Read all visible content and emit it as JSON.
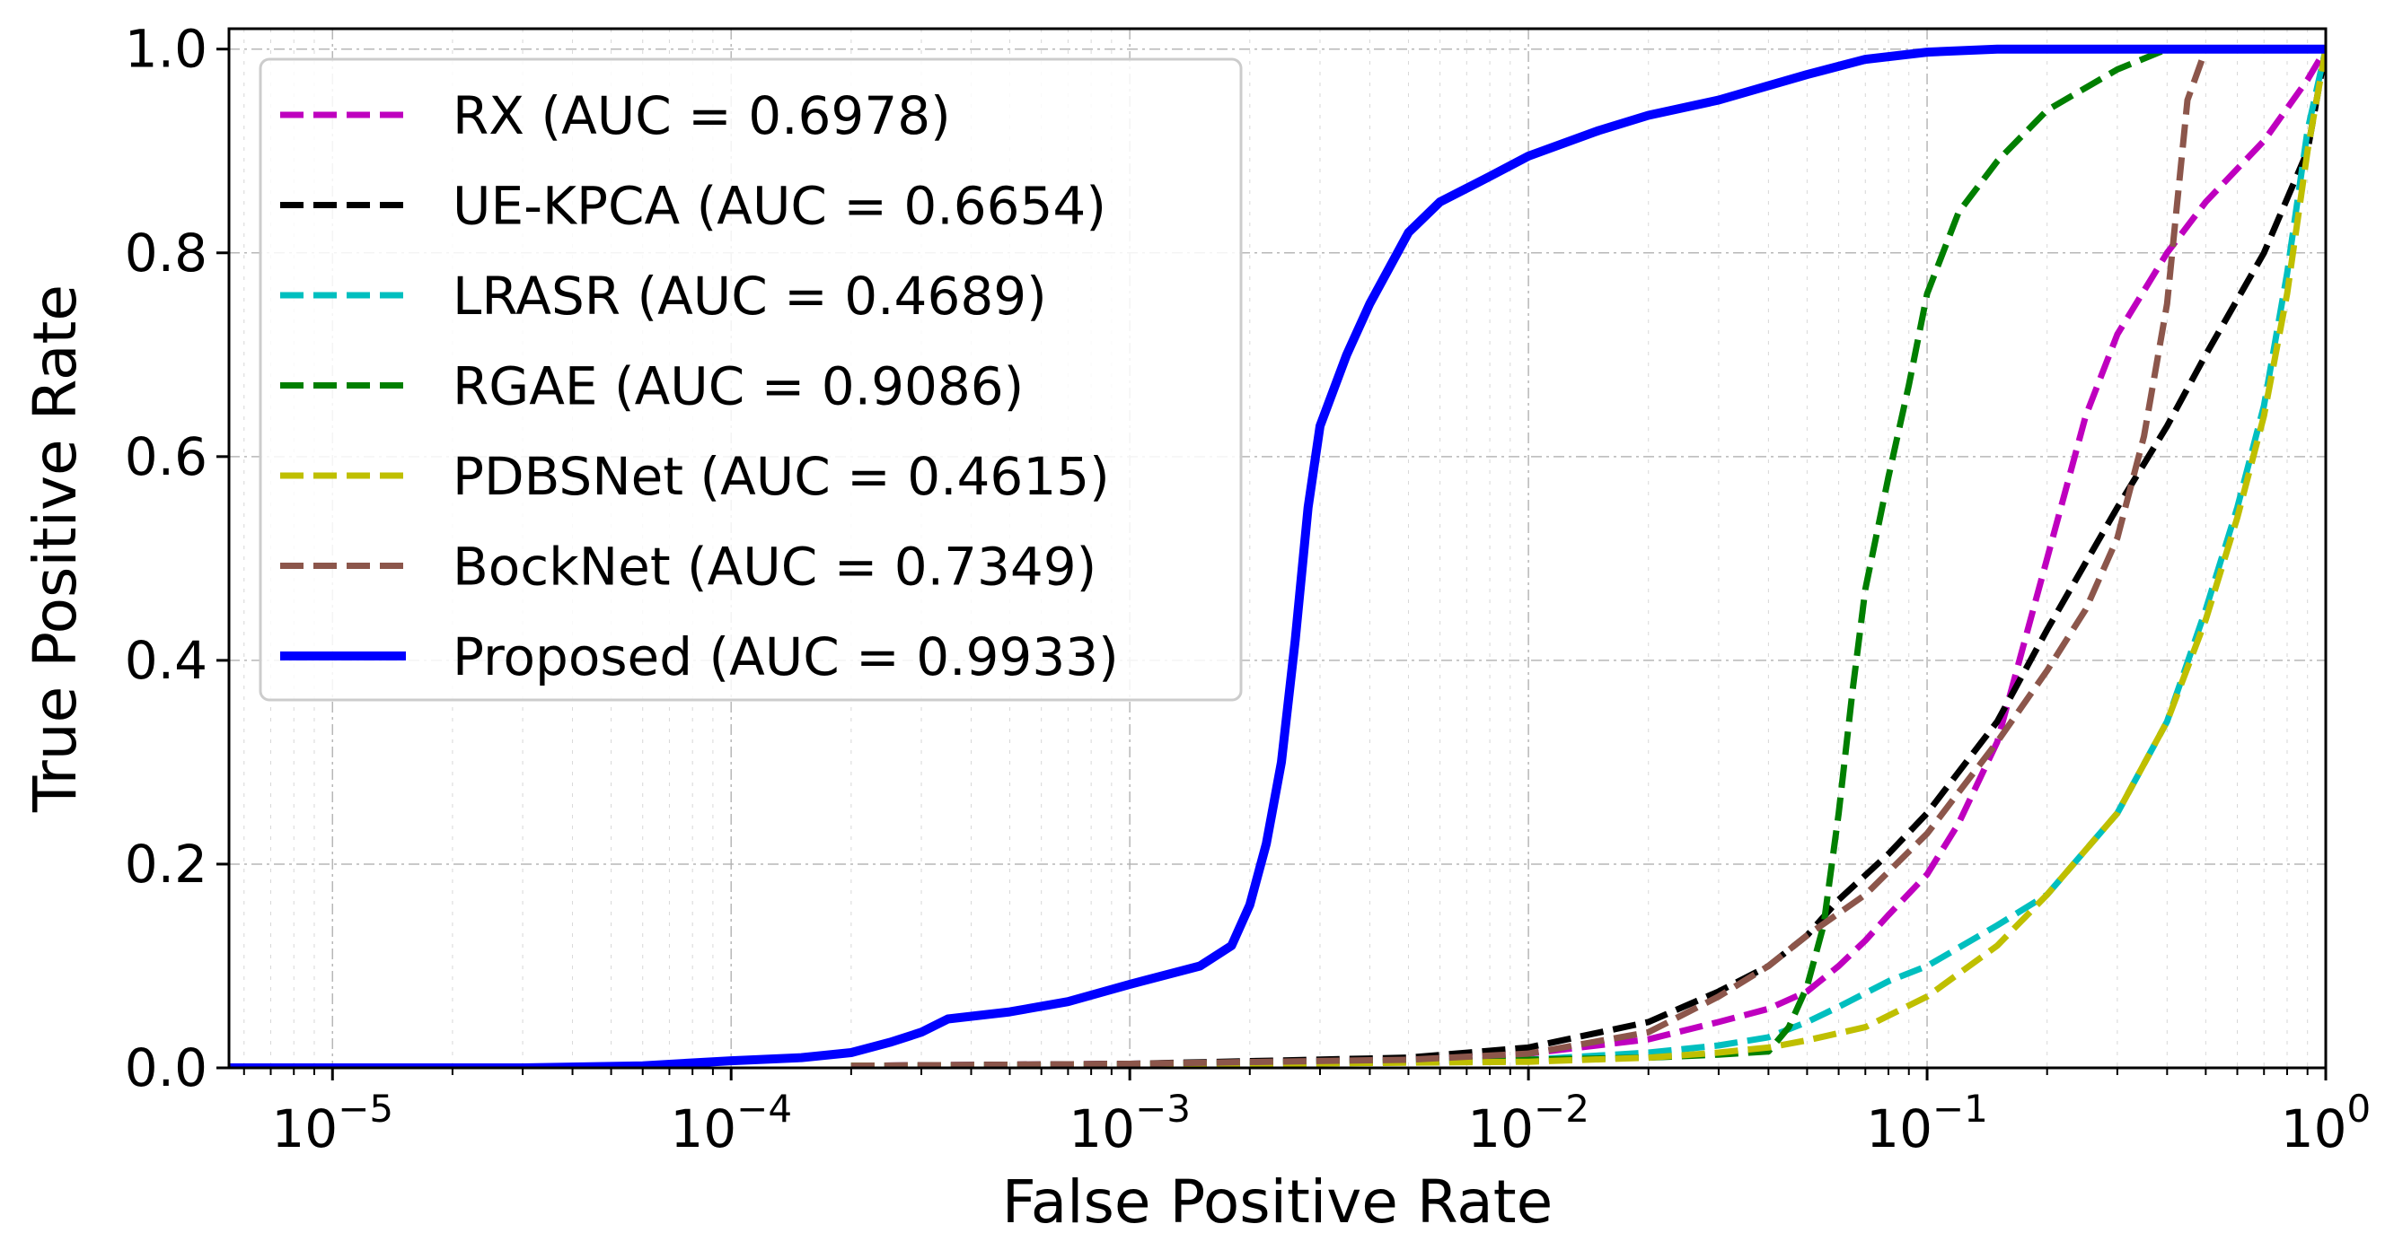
{
  "chart_data": {
    "type": "line",
    "xscale": "log",
    "xlabel": "False Positive Rate",
    "ylabel": "True Positive Rate",
    "xlim": [
      5.5e-06,
      1
    ],
    "ylim": [
      0,
      1.02
    ],
    "grid": true,
    "legend_position": "top-left",
    "x_ticks": [
      {
        "value": 1e-05,
        "base": "10",
        "exp": "−5"
      },
      {
        "value": 0.0001,
        "base": "10",
        "exp": "−4"
      },
      {
        "value": 0.001,
        "base": "10",
        "exp": "−3"
      },
      {
        "value": 0.01,
        "base": "10",
        "exp": "−2"
      },
      {
        "value": 0.1,
        "base": "10",
        "exp": "−1"
      },
      {
        "value": 1,
        "base": "10",
        "exp": "0"
      }
    ],
    "y_ticks": [
      {
        "value": 0.0,
        "label": "0.0"
      },
      {
        "value": 0.2,
        "label": "0.2"
      },
      {
        "value": 0.4,
        "label": "0.4"
      },
      {
        "value": 0.6,
        "label": "0.6"
      },
      {
        "value": 0.8,
        "label": "0.8"
      },
      {
        "value": 1.0,
        "label": "1.0"
      }
    ],
    "series": [
      {
        "name": "RX (AUC = 0.6978)",
        "color": "#bf00bf",
        "style": "dashed",
        "points": [
          [
            0.0002,
            0.002
          ],
          [
            0.001,
            0.004
          ],
          [
            0.005,
            0.008
          ],
          [
            0.01,
            0.014
          ],
          [
            0.02,
            0.028
          ],
          [
            0.03,
            0.045
          ],
          [
            0.04,
            0.058
          ],
          [
            0.05,
            0.075
          ],
          [
            0.06,
            0.1
          ],
          [
            0.07,
            0.125
          ],
          [
            0.08,
            0.15
          ],
          [
            0.1,
            0.19
          ],
          [
            0.12,
            0.24
          ],
          [
            0.15,
            0.32
          ],
          [
            0.2,
            0.5
          ],
          [
            0.25,
            0.64
          ],
          [
            0.3,
            0.72
          ],
          [
            0.4,
            0.8
          ],
          [
            0.5,
            0.85
          ],
          [
            0.7,
            0.91
          ],
          [
            0.9,
            0.97
          ],
          [
            1.0,
            1.0
          ]
        ]
      },
      {
        "name": "UE-KPCA (AUC = 0.6654)",
        "color": "#000000",
        "style": "dashed",
        "points": [
          [
            0.0002,
            0.002
          ],
          [
            0.001,
            0.004
          ],
          [
            0.005,
            0.01
          ],
          [
            0.01,
            0.02
          ],
          [
            0.02,
            0.045
          ],
          [
            0.03,
            0.075
          ],
          [
            0.04,
            0.1
          ],
          [
            0.05,
            0.13
          ],
          [
            0.06,
            0.165
          ],
          [
            0.08,
            0.21
          ],
          [
            0.1,
            0.25
          ],
          [
            0.15,
            0.34
          ],
          [
            0.2,
            0.43
          ],
          [
            0.3,
            0.55
          ],
          [
            0.4,
            0.63
          ],
          [
            0.5,
            0.7
          ],
          [
            0.7,
            0.8
          ],
          [
            0.9,
            0.9
          ],
          [
            1.0,
            1.0
          ]
        ]
      },
      {
        "name": "LRASR (AUC = 0.4689)",
        "color": "#00bfbf",
        "style": "dashed",
        "points": [
          [
            0.0002,
            0.002
          ],
          [
            0.001,
            0.003
          ],
          [
            0.01,
            0.008
          ],
          [
            0.02,
            0.015
          ],
          [
            0.03,
            0.022
          ],
          [
            0.04,
            0.03
          ],
          [
            0.05,
            0.045
          ],
          [
            0.06,
            0.06
          ],
          [
            0.08,
            0.085
          ],
          [
            0.1,
            0.1
          ],
          [
            0.15,
            0.14
          ],
          [
            0.2,
            0.17
          ],
          [
            0.3,
            0.25
          ],
          [
            0.4,
            0.34
          ],
          [
            0.5,
            0.45
          ],
          [
            0.6,
            0.55
          ],
          [
            0.7,
            0.65
          ],
          [
            0.8,
            0.78
          ],
          [
            0.9,
            0.92
          ],
          [
            1.0,
            1.0
          ]
        ]
      },
      {
        "name": "RGAE (AUC = 0.9086)",
        "color": "#007f00",
        "style": "dashed",
        "points": [
          [
            0.0002,
            0.002
          ],
          [
            0.001,
            0.003
          ],
          [
            0.005,
            0.006
          ],
          [
            0.01,
            0.008
          ],
          [
            0.02,
            0.01
          ],
          [
            0.03,
            0.013
          ],
          [
            0.04,
            0.016
          ],
          [
            0.045,
            0.04
          ],
          [
            0.05,
            0.08
          ],
          [
            0.055,
            0.14
          ],
          [
            0.06,
            0.25
          ],
          [
            0.065,
            0.37
          ],
          [
            0.07,
            0.47
          ],
          [
            0.08,
            0.58
          ],
          [
            0.09,
            0.67
          ],
          [
            0.1,
            0.76
          ],
          [
            0.12,
            0.84
          ],
          [
            0.15,
            0.89
          ],
          [
            0.2,
            0.94
          ],
          [
            0.3,
            0.98
          ],
          [
            0.4,
            1.0
          ],
          [
            1.0,
            1.0
          ]
        ]
      },
      {
        "name": "PDBSNet (AUC = 0.4615)",
        "color": "#bfbf00",
        "style": "dashed",
        "points": [
          [
            0.0002,
            0.002
          ],
          [
            0.001,
            0.003
          ],
          [
            0.01,
            0.006
          ],
          [
            0.02,
            0.01
          ],
          [
            0.03,
            0.015
          ],
          [
            0.04,
            0.02
          ],
          [
            0.05,
            0.027
          ],
          [
            0.07,
            0.04
          ],
          [
            0.1,
            0.07
          ],
          [
            0.15,
            0.12
          ],
          [
            0.2,
            0.17
          ],
          [
            0.3,
            0.25
          ],
          [
            0.4,
            0.34
          ],
          [
            0.5,
            0.44
          ],
          [
            0.6,
            0.54
          ],
          [
            0.7,
            0.64
          ],
          [
            0.8,
            0.76
          ],
          [
            0.9,
            0.9
          ],
          [
            1.0,
            1.0
          ]
        ]
      },
      {
        "name": "BockNet (AUC = 0.7349)",
        "color": "#8c564b",
        "style": "dashed",
        "points": [
          [
            0.0002,
            0.002
          ],
          [
            0.001,
            0.004
          ],
          [
            0.005,
            0.008
          ],
          [
            0.01,
            0.014
          ],
          [
            0.02,
            0.035
          ],
          [
            0.03,
            0.07
          ],
          [
            0.04,
            0.1
          ],
          [
            0.05,
            0.13
          ],
          [
            0.07,
            0.17
          ],
          [
            0.1,
            0.23
          ],
          [
            0.15,
            0.32
          ],
          [
            0.2,
            0.39
          ],
          [
            0.25,
            0.45
          ],
          [
            0.3,
            0.52
          ],
          [
            0.35,
            0.62
          ],
          [
            0.4,
            0.75
          ],
          [
            0.45,
            0.95
          ],
          [
            0.5,
            1.0
          ],
          [
            1.0,
            1.0
          ]
        ]
      },
      {
        "name": "Proposed (AUC = 0.9933)",
        "color": "#0000ff",
        "style": "solid",
        "points": [
          [
            5.5e-06,
            0.0
          ],
          [
            3e-05,
            0.0
          ],
          [
            6e-05,
            0.002
          ],
          [
            0.0001,
            0.007
          ],
          [
            0.00015,
            0.01
          ],
          [
            0.0002,
            0.015
          ],
          [
            0.00025,
            0.025
          ],
          [
            0.0003,
            0.035
          ],
          [
            0.00035,
            0.048
          ],
          [
            0.0005,
            0.055
          ],
          [
            0.0007,
            0.065
          ],
          [
            0.001,
            0.082
          ],
          [
            0.0015,
            0.1
          ],
          [
            0.0018,
            0.12
          ],
          [
            0.002,
            0.16
          ],
          [
            0.0022,
            0.22
          ],
          [
            0.0024,
            0.3
          ],
          [
            0.0026,
            0.42
          ],
          [
            0.0028,
            0.55
          ],
          [
            0.003,
            0.63
          ],
          [
            0.0035,
            0.7
          ],
          [
            0.004,
            0.75
          ],
          [
            0.005,
            0.82
          ],
          [
            0.006,
            0.85
          ],
          [
            0.008,
            0.875
          ],
          [
            0.01,
            0.895
          ],
          [
            0.015,
            0.92
          ],
          [
            0.02,
            0.935
          ],
          [
            0.03,
            0.95
          ],
          [
            0.05,
            0.975
          ],
          [
            0.07,
            0.99
          ],
          [
            0.1,
            0.997
          ],
          [
            0.15,
            1.0
          ],
          [
            1.0,
            1.0
          ]
        ]
      }
    ]
  }
}
